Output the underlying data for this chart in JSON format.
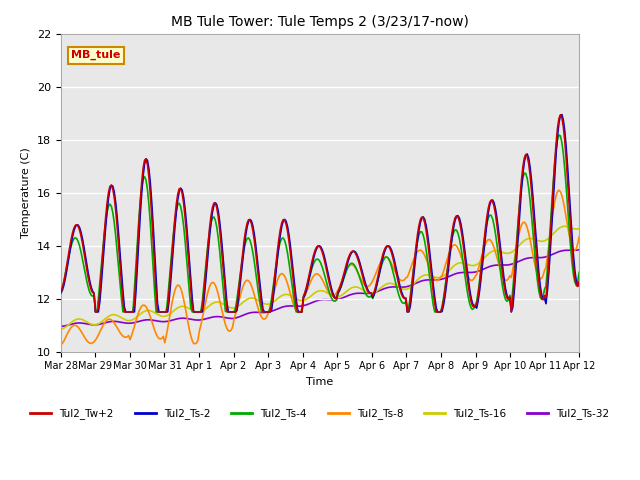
{
  "title": "MB Tule Tower: Tule Temps 2 (3/23/17-now)",
  "xlabel": "Time",
  "ylabel": "Temperature (C)",
  "ylim": [
    10,
    22
  ],
  "yticks": [
    10,
    12,
    14,
    16,
    18,
    20,
    22
  ],
  "plot_bg_color": "#e8e8e8",
  "series": {
    "Tul2_Tw+2": {
      "color": "#cc0000",
      "lw": 1.2
    },
    "Tul2_Ts-2": {
      "color": "#0000cc",
      "lw": 1.2
    },
    "Tul2_Ts-4": {
      "color": "#00aa00",
      "lw": 1.2
    },
    "Tul2_Ts-8": {
      "color": "#ff8800",
      "lw": 1.2
    },
    "Tul2_Ts-16": {
      "color": "#cccc00",
      "lw": 1.2
    },
    "Tul2_Ts-32": {
      "color": "#8800cc",
      "lw": 1.2
    }
  },
  "watermark_text": "MB_tule",
  "watermark_color": "#cc0000",
  "watermark_bg": "#ffffcc",
  "watermark_border": "#cc8800",
  "tick_labels": [
    "Mar 28",
    "Mar 29",
    "Mar 30",
    "Mar 31",
    "Apr 1",
    "Apr 2",
    "Apr 3",
    "Apr 4",
    "Apr 5",
    "Apr 6",
    "Apr 7",
    "Apr 8",
    "Apr 9",
    "Apr 10",
    "Apr 11",
    "Apr 12"
  ]
}
